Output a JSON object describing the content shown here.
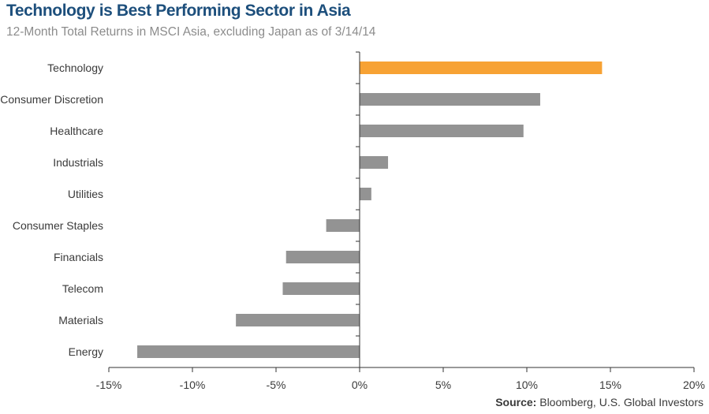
{
  "chart_data": {
    "type": "bar",
    "orientation": "horizontal",
    "title": "Technology is Best Performing Sector in Asia",
    "subtitle": "12-Month Total Returns in MSCI Asia, excluding Japan as of 3/14/14",
    "categories": [
      "Technology",
      "Consumer Discretion",
      "Healthcare",
      "Industrials",
      "Utilities",
      "Consumer Staples",
      "Financials",
      "Telecom",
      "Materials",
      "Energy"
    ],
    "values": [
      14.5,
      10.8,
      9.8,
      1.7,
      0.7,
      -2.0,
      -4.4,
      -4.6,
      -7.4,
      -13.3
    ],
    "highlight_category": "Technology",
    "xlim": [
      -15,
      20
    ],
    "x_ticks": [
      -15,
      -10,
      -5,
      0,
      5,
      10,
      15,
      20
    ],
    "x_tick_labels": [
      "-15%",
      "-10%",
      "-5%",
      "0%",
      "5%",
      "10%",
      "15%",
      "20%"
    ],
    "xlabel": "",
    "ylabel": "",
    "grid": false,
    "legend": "none",
    "colors": {
      "highlight": "#f7a234",
      "default": "#939393",
      "axis": "#333333"
    }
  },
  "source": {
    "label": "Source:",
    "text": " Bloomberg, U.S. Global Investors"
  }
}
